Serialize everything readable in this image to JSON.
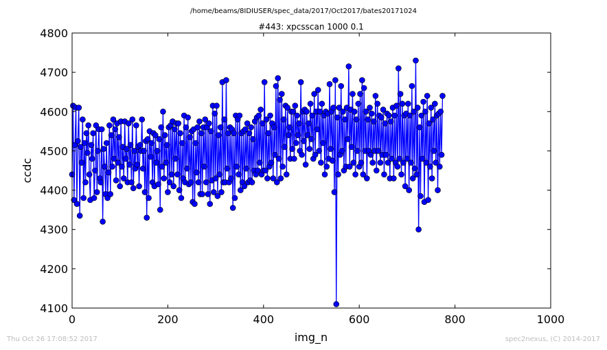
{
  "header": {
    "path": "/home/beams/8IDIUSER/spec_data/2017/Oct2017/bates20171024"
  },
  "footer": {
    "timestamp": "Thu Oct 26 17:08:52 2017",
    "credit": "spec2nexus, (C) 2014-2017"
  },
  "chart_data": {
    "type": "line",
    "title": "#443: xpcsscan 1000 0.1",
    "xlabel": "img_n",
    "ylabel": "ccdc",
    "xlim": [
      0,
      1000
    ],
    "ylim": [
      4100,
      4800
    ],
    "xticks": [
      "0",
      "200",
      "400",
      "600",
      "800",
      "1000"
    ],
    "yticks": [
      "4100",
      "4200",
      "4300",
      "4400",
      "4500",
      "4600",
      "4700",
      "4800"
    ],
    "grid": false,
    "legend": "none",
    "colors": {
      "line": "#0000ff",
      "marker": "#0000ff",
      "marker_edge": "#000000"
    },
    "series": [
      {
        "x_start": 0,
        "x_step": 2,
        "values": [
          4440,
          4615,
          4375,
          4515,
          4610,
          4365,
          4525,
          4610,
          4335,
          4510,
          4470,
          4580,
          4380,
          4520,
          4420,
          4545,
          4495,
          4565,
          4440,
          4375,
          4515,
          4480,
          4545,
          4380,
          4450,
          4565,
          4395,
          4500,
          4555,
          4430,
          4420,
          4555,
          4320,
          4505,
          4460,
          4390,
          4520,
          4380,
          4445,
          4565,
          4390,
          4540,
          4460,
          4580,
          4480,
          4555,
          4425,
          4570,
          4470,
          4535,
          4410,
          4575,
          4460,
          4510,
          4430,
          4575,
          4480,
          4505,
          4420,
          4570,
          4465,
          4515,
          4420,
          4580,
          4405,
          4500,
          4455,
          4565,
          4465,
          4510,
          4410,
          4515,
          4500,
          4580,
          4455,
          4500,
          4395,
          4525,
          4330,
          4530,
          4380,
          4550,
          4485,
          4520,
          4420,
          4545,
          4410,
          4540,
          4470,
          4500,
          4415,
          4530,
          4350,
          4560,
          4460,
          4600,
          4430,
          4540,
          4470,
          4515,
          4395,
          4560,
          4420,
          4565,
          4440,
          4575,
          4410,
          4555,
          4480,
          4570,
          4440,
          4570,
          4400,
          4545,
          4380,
          4520,
          4430,
          4590,
          4420,
          4560,
          4455,
          4585,
          4415,
          4535,
          4420,
          4550,
          4370,
          4555,
          4365,
          4520,
          4445,
          4560,
          4420,
          4575,
          4390,
          4545,
          4390,
          4560,
          4460,
          4580,
          4420,
          4560,
          4390,
          4570,
          4365,
          4550,
          4425,
          4615,
          4395,
          4595,
          4430,
          4615,
          4385,
          4540,
          4440,
          4560,
          4395,
          4675,
          4420,
          4580,
          4420,
          4680,
          4455,
          4545,
          4420,
          4560,
          4430,
          4555,
          4355,
          4545,
          4380,
          4590,
          4460,
          4580,
          4440,
          4590,
          4400,
          4545,
          4420,
          4550,
          4410,
          4555,
          4455,
          4570,
          4420,
          4545,
          4425,
          4560,
          4420,
          4530,
          4450,
          4575,
          4440,
          4585,
          4450,
          4590,
          4470,
          4605,
          4440,
          4570,
          4450,
          4675,
          4450,
          4580,
          4430,
          4545,
          4460,
          4590,
          4470,
          4570,
          4430,
          4560,
          4490,
          4665,
          4420,
          4685,
          4480,
          4630,
          4430,
          4645,
          4460,
          4580,
          4510,
          4615,
          4440,
          4610,
          4540,
          4560,
          4480,
          4600,
          4505,
          4600,
          4480,
          4615,
          4520,
          4590,
          4540,
          4570,
          4500,
          4675,
          4490,
          4600,
          4525,
          4605,
          4465,
          4600,
          4540,
          4570,
          4505,
          4620,
          4530,
          4590,
          4480,
          4645,
          4490,
          4600,
          4555,
          4655,
          4500,
          4600,
          4470,
          4620,
          4520,
          4590,
          4440,
          4600,
          4460,
          4595,
          4480,
          4670,
          4505,
          4600,
          4475,
          4610,
          4395,
          4680,
          4110,
          4585,
          4440,
          4610,
          4490,
          4665,
          4500,
          4600,
          4450,
          4580,
          4460,
          4610,
          4530,
          4715,
          4460,
          4605,
          4510,
          4645,
          4470,
          4600,
          4440,
          4580,
          4500,
          4620,
          4460,
          4645,
          4470,
          4680,
          4440,
          4660,
          4500,
          4600,
          4430,
          4580,
          4500,
          4610,
          4490,
          4595,
          4470,
          4575,
          4500,
          4640,
          4450,
          4620,
          4500,
          4590,
          4470,
          4585,
          4490,
          4605,
          4440,
          4570,
          4490,
          4595,
          4470,
          4590,
          4430,
          4575,
          4480,
          4610,
          4430,
          4590,
          4470,
          4615,
          4460,
          4710,
          4480,
          4645,
          4440,
          4620,
          4470,
          4590,
          4410,
          4595,
          4480,
          4620,
          4400,
          4590,
          4470,
          4665,
          4430,
          4600,
          4455,
          4730,
          4440,
          4610,
          4300,
          4560,
          4385,
          4590,
          4480,
          4625,
          4370,
          4600,
          4470,
          4640,
          4375,
          4570,
          4460,
          4610,
          4430,
          4580,
          4500,
          4620,
          4470,
          4590,
          4400,
          4595,
          4460,
          4600,
          4490,
          4640
        ]
      }
    ]
  }
}
